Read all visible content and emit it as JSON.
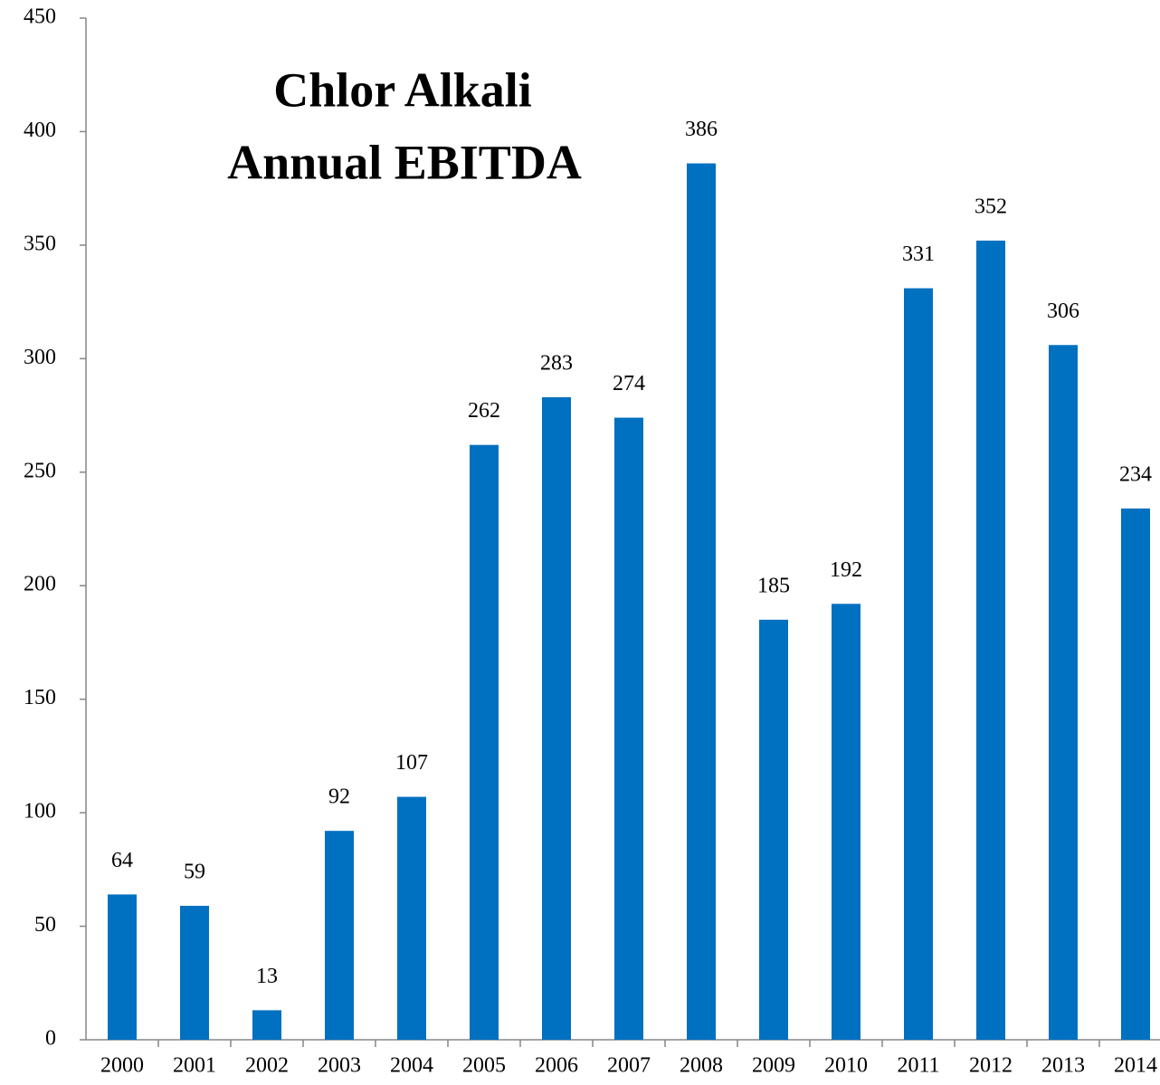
{
  "chart_data": {
    "type": "bar",
    "title": [
      "Chlor Alkali",
      "Annual EBITDA"
    ],
    "categories": [
      "2000",
      "2001",
      "2002",
      "2003",
      "2004",
      "2005",
      "2006",
      "2007",
      "2008",
      "2009",
      "2010",
      "2011",
      "2012",
      "2013",
      "2014"
    ],
    "values": [
      64,
      59,
      13,
      92,
      107,
      262,
      283,
      274,
      386,
      185,
      192,
      331,
      352,
      306,
      234
    ],
    "color": "#0070c0",
    "ylim": [
      0,
      450
    ],
    "yticks": [
      0,
      50,
      100,
      150,
      200,
      250,
      300,
      350,
      400,
      450
    ],
    "grid": false
  }
}
